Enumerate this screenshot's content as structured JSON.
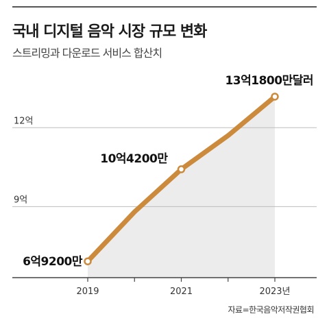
{
  "header": {
    "title": "국내 디지털 음악 시장 규모 변화",
    "subtitle": "스트리밍과 다운로드 서비스 합산치"
  },
  "source": "자료=한국음악저작권협회",
  "colors": {
    "line": "#cc8a3c",
    "area": "#ececec",
    "grid": "#bdbdbd",
    "axis": "#444444"
  },
  "chart_data": {
    "type": "area",
    "x": [
      2019,
      2020,
      2021,
      2022,
      2023
    ],
    "series": [
      {
        "values": [
          6.92,
          8.8,
          10.42,
          11.7,
          13.18
        ]
      }
    ],
    "ylim": [
      6.3,
      14.3
    ],
    "yticks": [
      {
        "value": 9,
        "label": "9억"
      },
      {
        "value": 12,
        "label": "12억"
      }
    ],
    "xticks": [
      {
        "value": 2019,
        "label": "2019"
      },
      {
        "value": 2021,
        "label": "2021"
      },
      {
        "value": 2023,
        "label": "2023년"
      }
    ],
    "data_labels": [
      {
        "index": 0,
        "text": "6억9200만"
      },
      {
        "index": 2,
        "text": "10억4200만"
      },
      {
        "index": 4,
        "text": "13억1800만달러"
      }
    ],
    "markers": [
      0,
      2,
      4
    ]
  }
}
